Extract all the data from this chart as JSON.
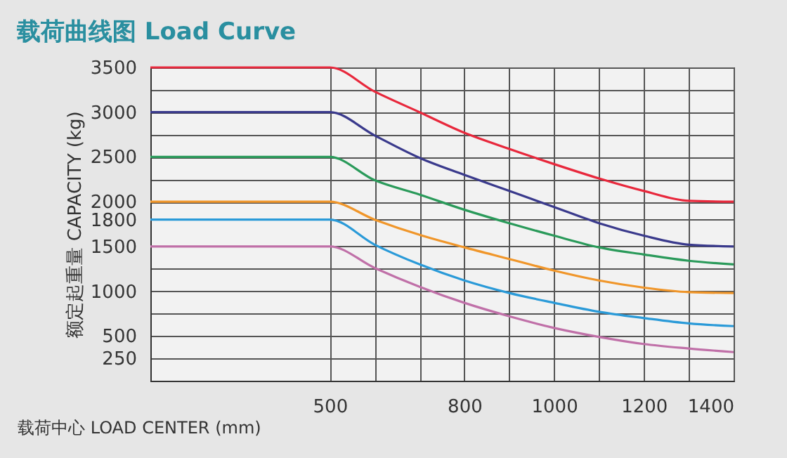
{
  "chart_data": {
    "type": "line",
    "title": "载荷曲线图 Load Curve",
    "xlabel": "载荷中心  LOAD CENTER (mm)",
    "ylabel": "额定起重量 CAPACITY (kg)",
    "x": [
      100,
      500,
      600,
      700,
      800,
      900,
      1000,
      1100,
      1200,
      1300,
      1400
    ],
    "series": [
      {
        "color": "#e8283c",
        "values": [
          3500,
          3500,
          3230,
          3000,
          2770,
          2590,
          2420,
          2260,
          2120,
          2010,
          2000
        ]
      },
      {
        "color": "#3a3a8c",
        "values": [
          3000,
          3000,
          2740,
          2490,
          2300,
          2120,
          1940,
          1760,
          1620,
          1520,
          1500
        ]
      },
      {
        "color": "#2a9a5a",
        "values": [
          2500,
          2500,
          2240,
          2080,
          1910,
          1760,
          1620,
          1490,
          1410,
          1340,
          1300
        ]
      },
      {
        "color": "#f0962a",
        "values": [
          2000,
          2000,
          1800,
          1630,
          1490,
          1360,
          1230,
          1120,
          1040,
          990,
          980
        ]
      },
      {
        "color": "#2a9ad8",
        "values": [
          1800,
          1800,
          1520,
          1300,
          1120,
          980,
          870,
          770,
          700,
          640,
          610
        ]
      },
      {
        "color": "#c070a8",
        "values": [
          1500,
          1500,
          1260,
          1050,
          870,
          720,
          590,
          490,
          410,
          360,
          320
        ]
      }
    ],
    "xlim": [
      100,
      1400
    ],
    "xticks": [
      500,
      {
        "value": 600,
        "label": null
      },
      {
        "value": 700,
        "label": null
      },
      800,
      {
        "value": 900,
        "label": null
      },
      1000,
      {
        "value": 1100,
        "label": null
      },
      1200,
      {
        "value": 1300,
        "label": null
      },
      1400
    ],
    "ylim": [
      0,
      3500
    ],
    "yticks": [
      250,
      500,
      {
        "value": 750,
        "label": null
      },
      1000,
      {
        "value": 1250,
        "label": null
      },
      1500,
      1800,
      2000,
      {
        "value": 2250,
        "label": null
      },
      2500,
      {
        "value": 2750,
        "label": null
      },
      3000,
      {
        "value": 3250,
        "label": null
      },
      3500
    ],
    "grid": true,
    "marker": "none",
    "line_style": "solid"
  }
}
